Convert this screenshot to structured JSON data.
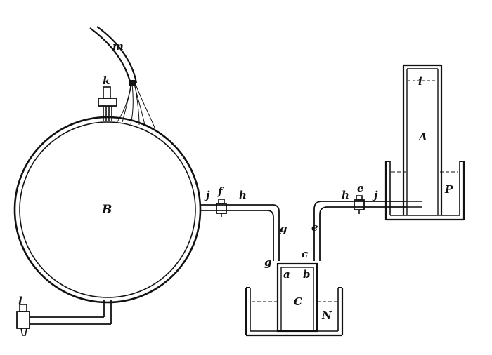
{
  "labels": {
    "m": "m",
    "k_top": "k",
    "B": "B",
    "l": "l",
    "j_left": "j",
    "f": "f",
    "h_left": "h",
    "g_pipe": "g",
    "g_low": "g",
    "a": "a",
    "b": "b",
    "c_pipe": "c",
    "e_pipe": "e",
    "C": "C",
    "N": "N",
    "h_right": "h",
    "e_valve": "e",
    "j_right": "j",
    "i": "i",
    "A": "A",
    "P": "P"
  }
}
